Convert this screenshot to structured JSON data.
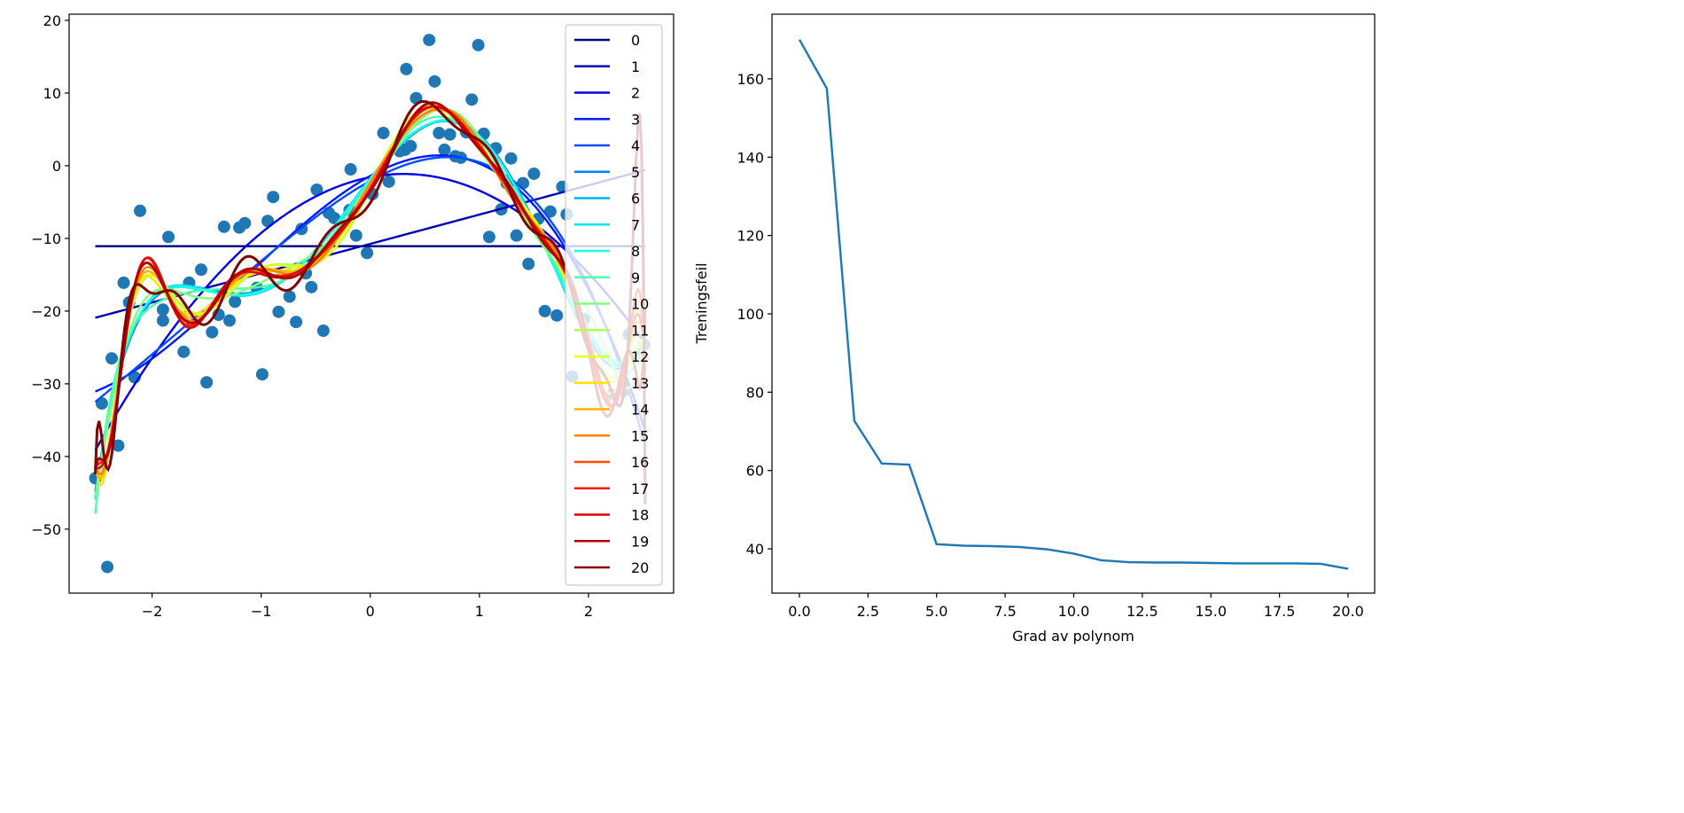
{
  "chart_data": [
    {
      "type": "scatter",
      "title": "",
      "xlabel": "",
      "ylabel": "",
      "xlim": [
        -2.76,
        2.78
      ],
      "ylim": [
        -58.8,
        20.85
      ],
      "xticks": [
        -2,
        -1,
        0,
        1,
        2
      ],
      "xtick_labels": [
        "−2",
        "−1",
        "0",
        "1",
        "2"
      ],
      "yticks": [
        20,
        10,
        0,
        -10,
        -20,
        -30,
        -40,
        -50
      ],
      "ytick_labels": [
        "20",
        "10",
        "0",
        "−10",
        "−20",
        "−30",
        "−40",
        "−50"
      ],
      "grid": false,
      "point_color": "#1f77b4",
      "points": {
        "x": [
          -2.52,
          -2.41,
          -2.46,
          -2.37,
          -2.31,
          -2.26,
          -2.21,
          -2.16,
          -2.11,
          -1.9,
          -1.85,
          -1.9,
          -1.71,
          -1.66,
          -1.55,
          -1.5,
          -1.45,
          -1.39,
          -1.34,
          -1.29,
          -1.24,
          -1.2,
          -1.15,
          -1.04,
          -0.99,
          -0.94,
          -0.89,
          -0.84,
          -0.74,
          -0.68,
          -0.63,
          -0.59,
          -0.54,
          -0.49,
          -0.43,
          -0.38,
          -0.33,
          -0.19,
          -0.18,
          -0.13,
          -0.03,
          0.02,
          0.12,
          0.17,
          0.27,
          0.32,
          0.33,
          0.37,
          0.42,
          0.54,
          0.59,
          0.63,
          0.68,
          0.73,
          0.78,
          0.83,
          0.88,
          0.93,
          0.99,
          1.04,
          1.09,
          1.15,
          1.2,
          1.25,
          1.29,
          1.34,
          1.4,
          1.45,
          1.5,
          1.54,
          1.6,
          1.65,
          1.71,
          1.76,
          1.8,
          1.85,
          1.96,
          2.21,
          2.32,
          2.37,
          2.51
        ],
        "y": [
          -43.0,
          -55.2,
          -32.7,
          -26.5,
          -38.5,
          -16.1,
          -18.8,
          -29.1,
          -6.2,
          -19.8,
          -9.8,
          -21.3,
          -25.6,
          -16.1,
          -14.3,
          -29.8,
          -22.9,
          -20.5,
          -8.4,
          -21.3,
          -18.7,
          -8.5,
          -7.9,
          -16.8,
          -28.7,
          -7.6,
          -4.3,
          -20.1,
          -18.0,
          -21.5,
          -8.7,
          -14.8,
          -16.7,
          -3.3,
          -22.7,
          -6.5,
          -7.2,
          -6.1,
          -0.5,
          -9.6,
          -12.0,
          -3.9,
          4.5,
          -2.2,
          2.0,
          2.2,
          13.3,
          2.7,
          9.3,
          17.3,
          11.6,
          4.5,
          2.2,
          4.3,
          1.3,
          1.1,
          4.6,
          9.1,
          16.6,
          4.4,
          -9.8,
          2.4,
          -6.0,
          -2.4,
          1.0,
          -9.6,
          -2.4,
          -13.5,
          -1.1,
          -7.3,
          -20.0,
          -6.3,
          -20.6,
          -2.9,
          -6.7,
          -29.0,
          -21.1,
          -31.5,
          -31.0,
          -23.2,
          -24.6
        ]
      },
      "fits": {
        "degrees": [
          0,
          1,
          2,
          3,
          4,
          5,
          6,
          7,
          8,
          9,
          10,
          11,
          12,
          13,
          14,
          15,
          16,
          17,
          18,
          19,
          20
        ],
        "colormap": "jet",
        "x_range": [
          -2.52,
          2.52
        ]
      },
      "legend": {
        "placement": "right",
        "entries": [
          "0",
          "1",
          "2",
          "3",
          "4",
          "5",
          "6",
          "7",
          "8",
          "9",
          "10",
          "11",
          "12",
          "13",
          "14",
          "15",
          "16",
          "17",
          "18",
          "19",
          "20"
        ]
      }
    },
    {
      "type": "line",
      "title": "",
      "xlabel": "Grad av polynom",
      "ylabel": "Treningsfeil",
      "xlim": [
        -1.0,
        20.97
      ],
      "ylim": [
        28.7,
        176.5
      ],
      "xticks": [
        0,
        2.5,
        5,
        7.5,
        10,
        12.5,
        15,
        17.5,
        20
      ],
      "xtick_labels": [
        "0.0",
        "2.5",
        "5.0",
        "7.5",
        "10.0",
        "12.5",
        "15.0",
        "17.5",
        "20.0"
      ],
      "yticks": [
        40,
        60,
        80,
        100,
        120,
        140,
        160
      ],
      "ytick_labels": [
        "40",
        "60",
        "80",
        "100",
        "120",
        "140",
        "160"
      ],
      "grid": false,
      "line_color": "#1f77b4",
      "x": [
        0,
        1,
        2,
        3,
        4,
        5,
        6,
        7,
        8,
        9,
        10,
        11,
        12,
        13,
        14,
        15,
        16,
        17,
        18,
        19,
        20
      ],
      "y": [
        170.0,
        157.5,
        72.7,
        61.8,
        61.5,
        41.2,
        40.8,
        40.7,
        40.5,
        39.9,
        38.8,
        37.1,
        36.6,
        36.5,
        36.5,
        36.4,
        36.3,
        36.3,
        36.3,
        36.2,
        34.9
      ]
    }
  ]
}
